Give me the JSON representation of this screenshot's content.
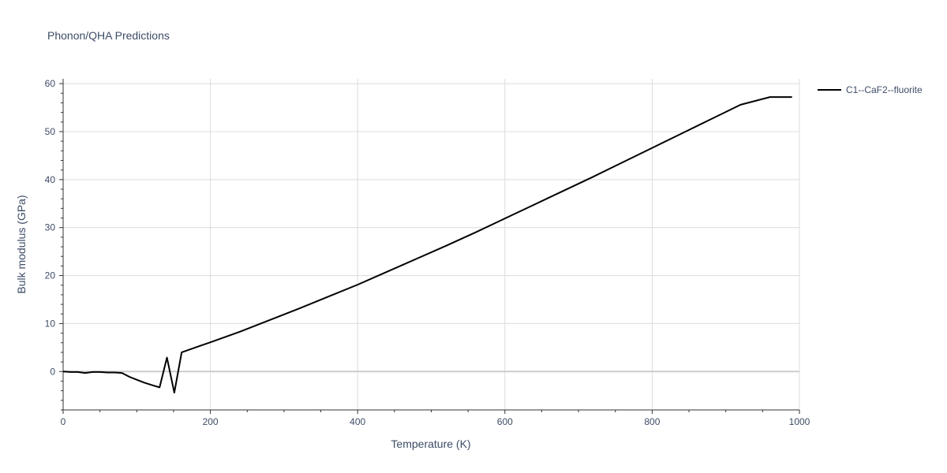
{
  "chart_data": {
    "type": "line",
    "title": "Phonon/QHA Predictions",
    "xlabel": "Temperature (K)",
    "ylabel": "Bulk modulus (GPa)",
    "xlim": [
      0,
      1000
    ],
    "ylim": [
      -8,
      61
    ],
    "xticks": [
      0,
      200,
      400,
      600,
      800,
      1000
    ],
    "yticks": [
      0,
      10,
      20,
      30,
      40,
      50,
      60
    ],
    "grid": true,
    "legend_position": "top-right",
    "series": [
      {
        "name": "C1--CaF2--fluorite",
        "color": "#000000",
        "x": [
          0,
          10,
          20,
          30,
          40,
          50,
          60,
          70,
          80,
          90,
          100,
          110,
          120,
          131,
          141,
          151,
          161,
          200,
          240,
          280,
          320,
          360,
          400,
          440,
          480,
          520,
          560,
          600,
          640,
          680,
          720,
          760,
          800,
          840,
          880,
          920,
          960,
          990
        ],
        "y": [
          0,
          -0.1,
          -0.1,
          -0.3,
          -0.1,
          -0.1,
          -0.2,
          -0.2,
          -0.3,
          -1.1,
          -1.7,
          -2.3,
          -2.8,
          -3.3,
          2.9,
          -4.4,
          4.0,
          6.1,
          8.3,
          10.7,
          13.1,
          15.6,
          18.1,
          20.8,
          23.5,
          26.2,
          29.0,
          31.9,
          34.8,
          37.7,
          40.6,
          43.6,
          46.6,
          49.6,
          52.6,
          55.6,
          57.2,
          57.2
        ]
      }
    ]
  }
}
